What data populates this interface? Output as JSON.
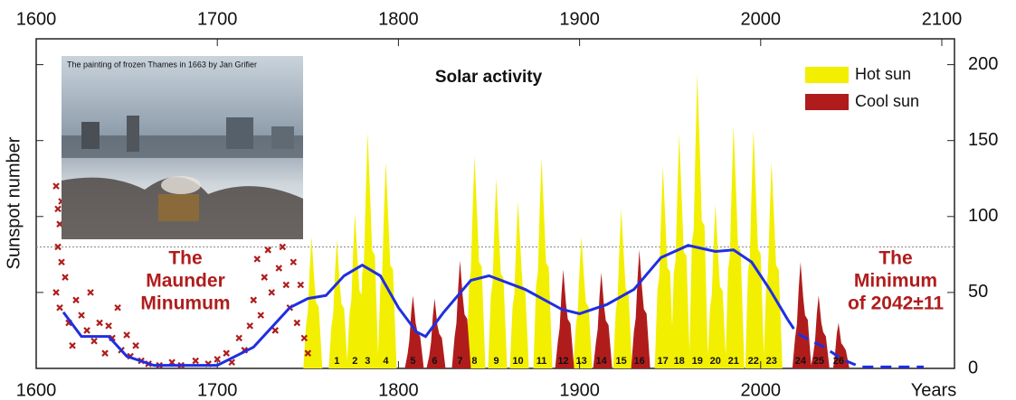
{
  "chart_data": {
    "type": "area",
    "title": "Solar activity",
    "y_label": "Sunspot number",
    "x_label": "Years",
    "xlim": [
      1600,
      2107
    ],
    "xticks": [
      1600,
      1700,
      1800,
      1900,
      2000,
      2100
    ],
    "ylim": [
      0,
      217
    ],
    "yticks": [
      0,
      50,
      100,
      150,
      200
    ],
    "reference_line": 80,
    "legend": "top-right",
    "series": [
      {
        "name": "Hot sun",
        "color": "#f2ef00",
        "cycles": [
          null,
          "1",
          "2",
          "3",
          "4",
          "8",
          "9",
          "10",
          "11",
          "13",
          "15",
          "17",
          "18",
          "19",
          "20",
          "21",
          "22",
          "23"
        ],
        "x": [
          1752,
          1766,
          1776,
          1783,
          1793,
          1842,
          1854,
          1866,
          1879,
          1901,
          1923,
          1946,
          1955,
          1965,
          1975,
          1985,
          1996,
          2006
        ],
        "values": [
          87,
          85,
          102,
          155,
          136,
          140,
          125,
          110,
          139,
          87,
          105,
          133,
          154,
          194,
          108,
          160,
          157,
          136
        ]
      },
      {
        "name": "Cool sun",
        "color": "#b01c1c",
        "cycles": [
          "5",
          "6",
          "7",
          "12",
          "14",
          "16",
          "24",
          "25",
          "26"
        ],
        "x": [
          1808,
          1820,
          1834,
          1891,
          1912,
          1933,
          2022,
          2032,
          2043
        ],
        "values": [
          48,
          46,
          71,
          65,
          63,
          78,
          70,
          48,
          30
        ]
      }
    ],
    "observations": {
      "color": "#b01c1c",
      "x": [
        1611,
        1612,
        1613,
        1614,
        1612,
        1614,
        1616,
        1611,
        1613,
        1618,
        1620,
        1622,
        1625,
        1628,
        1630,
        1632,
        1635,
        1638,
        1640,
        1642,
        1645,
        1647,
        1650,
        1652,
        1655,
        1658,
        1662,
        1668,
        1675,
        1680,
        1688,
        1695,
        1700,
        1705,
        1708,
        1712,
        1715,
        1718,
        1720,
        1722,
        1724,
        1726,
        1728,
        1730,
        1732,
        1734,
        1736,
        1738,
        1740,
        1742,
        1744,
        1746,
        1748,
        1750
      ],
      "values": [
        120,
        105,
        95,
        110,
        80,
        70,
        60,
        50,
        40,
        30,
        15,
        45,
        35,
        25,
        50,
        18,
        30,
        10,
        28,
        20,
        40,
        12,
        22,
        8,
        15,
        5,
        3,
        2,
        4,
        2,
        5,
        3,
        6,
        10,
        4,
        20,
        12,
        28,
        45,
        72,
        35,
        60,
        78,
        50,
        25,
        66,
        80,
        55,
        40,
        70,
        30,
        55,
        20,
        10
      ]
    },
    "trend": {
      "color": "#1f2fe0",
      "x": [
        1615,
        1625,
        1640,
        1650,
        1665,
        1700,
        1720,
        1740,
        1750,
        1760,
        1770,
        1780,
        1790,
        1800,
        1810,
        1815,
        1825,
        1840,
        1850,
        1870,
        1890,
        1900,
        1915,
        1930,
        1945,
        1960,
        1975,
        1985,
        1995,
        2005,
        2015
      ],
      "values": [
        37,
        21,
        21,
        8,
        2,
        2,
        14,
        40,
        46,
        48,
        61,
        68,
        61,
        40,
        24,
        21,
        37,
        58,
        61,
        52,
        39,
        36,
        42,
        52,
        73,
        81,
        77,
        78,
        70,
        52,
        32
      ]
    },
    "forecast": {
      "color": "#1f2fe0",
      "x": [
        2015,
        2020,
        2035,
        2045,
        2055,
        2075,
        2090
      ],
      "values": [
        32,
        23,
        14,
        6,
        1,
        1,
        1
      ]
    },
    "annotations": {
      "maunder": [
        "The",
        "Maunder",
        "Minumum"
      ],
      "minimum": [
        "The",
        "Minimum",
        "of 2042±11"
      ],
      "painting": "The painting of frozen Thames in 1663 by Jan Grifier"
    }
  }
}
